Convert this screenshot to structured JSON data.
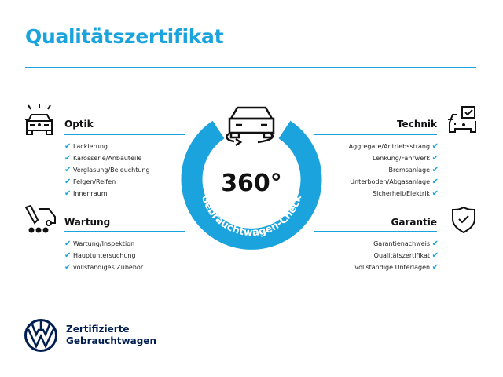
{
  "title": "Qualitätszertifikat",
  "colors": {
    "accent": "#1ba3dd",
    "brand": "#001e50"
  },
  "badge": {
    "value": "360°",
    "ring_text": "Gebrauchtwagen-Check",
    "icon": "car-rotate-icon"
  },
  "sections": {
    "optik": {
      "heading": "Optik",
      "icon": "car-lights-icon",
      "items": [
        "Lackierung",
        "Karosserie/Anbauteile",
        "Verglasung/Beleuchtung",
        "Felgen/Reifen",
        "Innenraum"
      ]
    },
    "wartung": {
      "heading": "Wartung",
      "icon": "service-van-icon",
      "items": [
        "Wartung/Inspektion",
        "Hauptuntersuchung",
        "vollständiges Zubehör"
      ]
    },
    "technik": {
      "heading": "Technik",
      "icon": "car-checkbox-icon",
      "items": [
        "Aggregate/Antriebsstrang",
        "Lenkung/Fahrwerk",
        "Bremsanlage",
        "Unterboden/Abgasanlage",
        "Sicherheit/Elektrik"
      ]
    },
    "garantie": {
      "heading": "Garantie",
      "icon": "shield-check-icon",
      "items": [
        "Garantienachweis",
        "Qualitätszertifikat",
        "vollständige Unterlagen"
      ]
    }
  },
  "check_mark": "✔",
  "footer": {
    "line1": "Zertifizierte",
    "line2": "Gebrauchtwagen",
    "logo": "vw-logo"
  }
}
